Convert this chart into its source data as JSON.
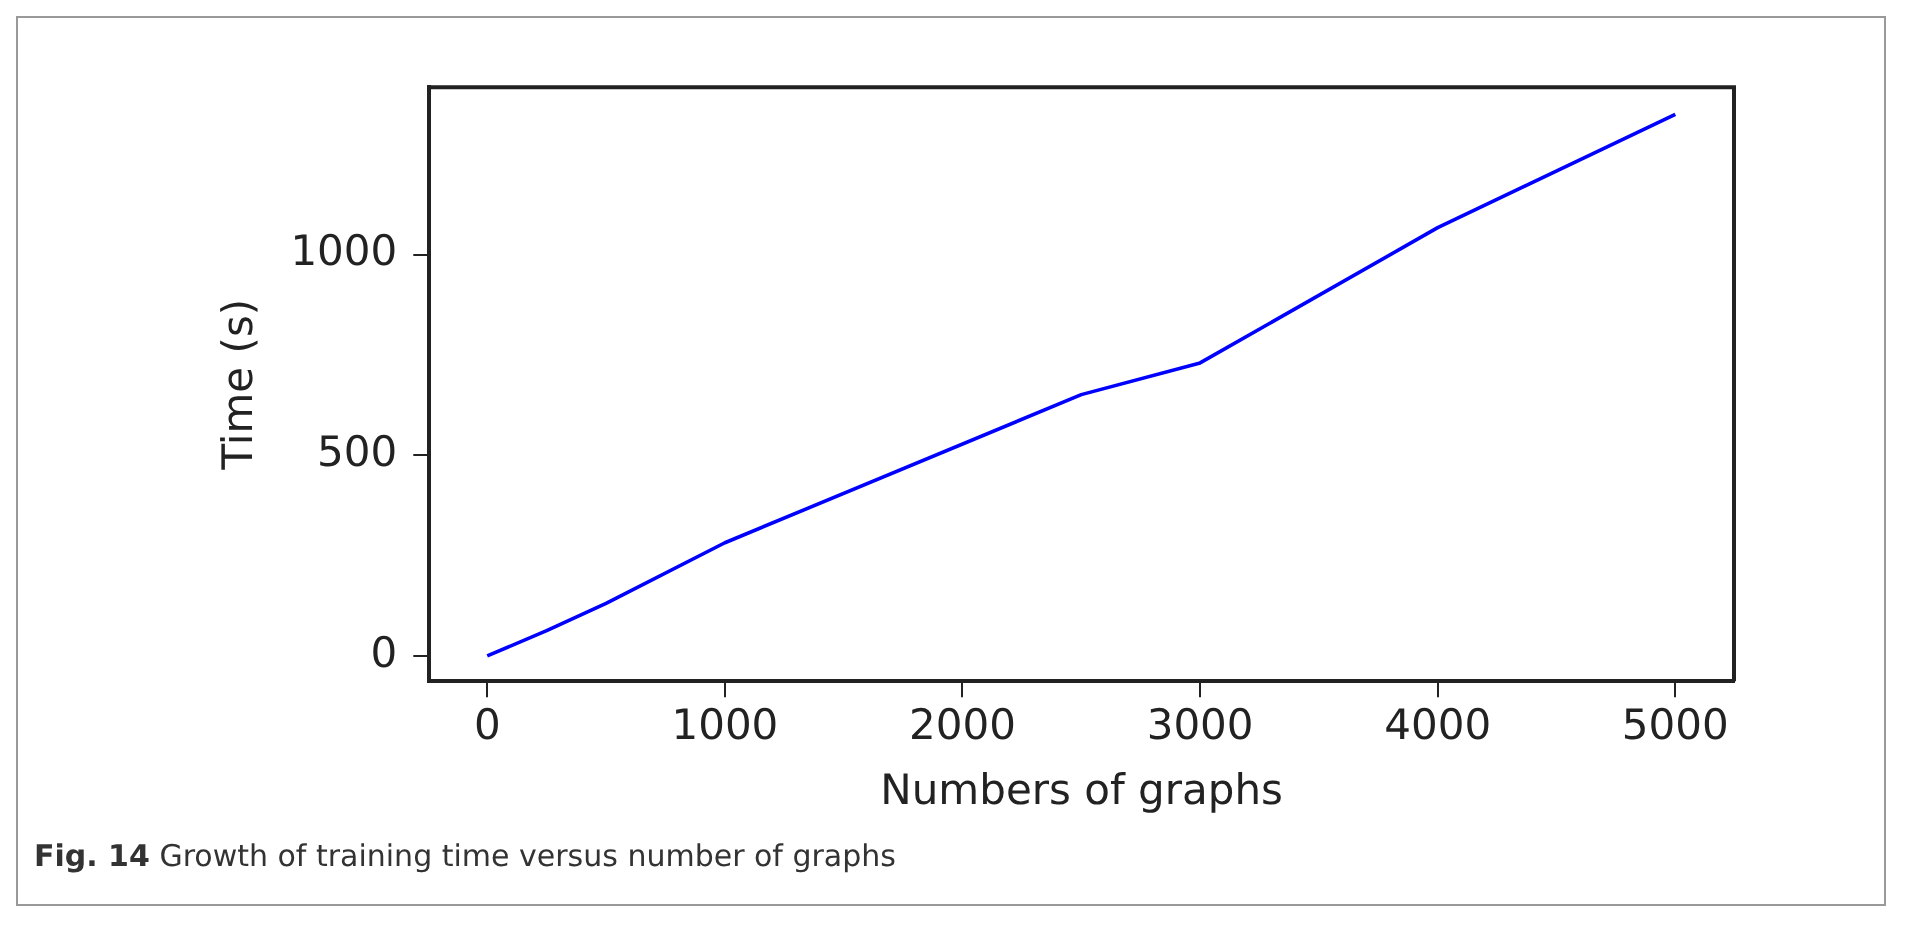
{
  "chart_data": {
    "type": "line",
    "xlabel": "Numbers of graphs",
    "ylabel": "Time (s)",
    "x": [
      0,
      250,
      500,
      1000,
      2500,
      3000,
      4000,
      5000
    ],
    "series": [
      {
        "color": "#0000ff",
        "values": [
          0,
          63,
          131,
          282,
          651,
          730,
          1067,
          1349
        ]
      }
    ],
    "xlim": [
      -244,
      5247
    ],
    "ylim": [
      -63,
      1417
    ],
    "xticks": [
      0,
      1000,
      2000,
      3000,
      4000,
      5000
    ],
    "yticks": [
      0,
      500,
      1000
    ],
    "grid": false,
    "legend": false,
    "marker": "none",
    "line_style": "solid",
    "annotations": [
      "Fig. 14  Growth of training time versus number of graphs"
    ]
  }
}
